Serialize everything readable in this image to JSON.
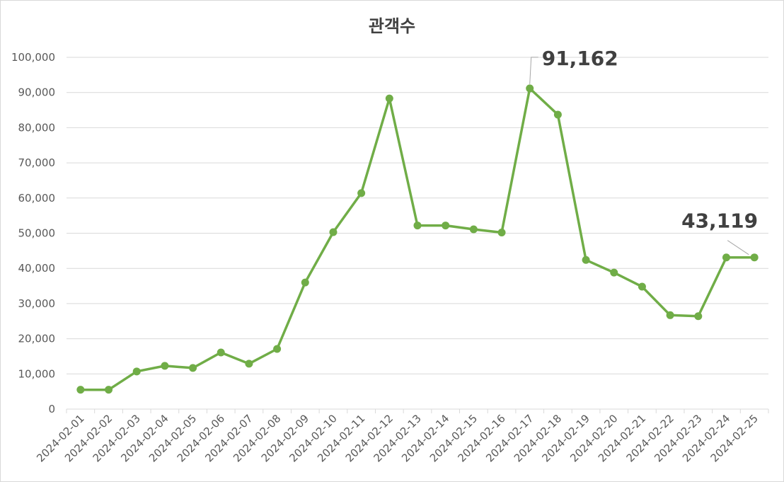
{
  "chart_data": {
    "type": "line",
    "title": "관객수",
    "xlabel": "",
    "ylabel": "",
    "ylim": [
      0,
      100000
    ],
    "yticks": [
      0,
      10000,
      20000,
      30000,
      40000,
      50000,
      60000,
      70000,
      80000,
      90000,
      100000
    ],
    "ytick_labels": [
      "0",
      "10,000",
      "20,000",
      "30,000",
      "40,000",
      "50,000",
      "60,000",
      "70,000",
      "80,000",
      "90,000",
      "100,000"
    ],
    "grid": true,
    "legend": "none",
    "categories": [
      "2024-02-01",
      "2024-02-02",
      "2024-02-03",
      "2024-02-04",
      "2024-02-05",
      "2024-02-06",
      "2024-02-07",
      "2024-02-08",
      "2024-02-09",
      "2024-02-10",
      "2024-02-11",
      "2024-02-12",
      "2024-02-13",
      "2024-02-14",
      "2024-02-15",
      "2024-02-16",
      "2024-02-17",
      "2024-02-18",
      "2024-02-19",
      "2024-02-20",
      "2024-02-21",
      "2024-02-22",
      "2024-02-23",
      "2024-02-24",
      "2024-02-25"
    ],
    "series": [
      {
        "color": "#70ad47",
        "values": [
          5500,
          5500,
          10700,
          12300,
          11700,
          16100,
          12900,
          17100,
          36000,
          50300,
          61400,
          88300,
          52200,
          52200,
          51100,
          50200,
          91162,
          83700,
          42400,
          38800,
          34800,
          26700,
          26400,
          43100,
          43119
        ]
      }
    ],
    "annotations": [
      {
        "category": "2024-02-17",
        "value": 91162,
        "label": "91,162"
      },
      {
        "category": "2024-02-25",
        "value": 43119,
        "label": "43,119"
      }
    ]
  }
}
